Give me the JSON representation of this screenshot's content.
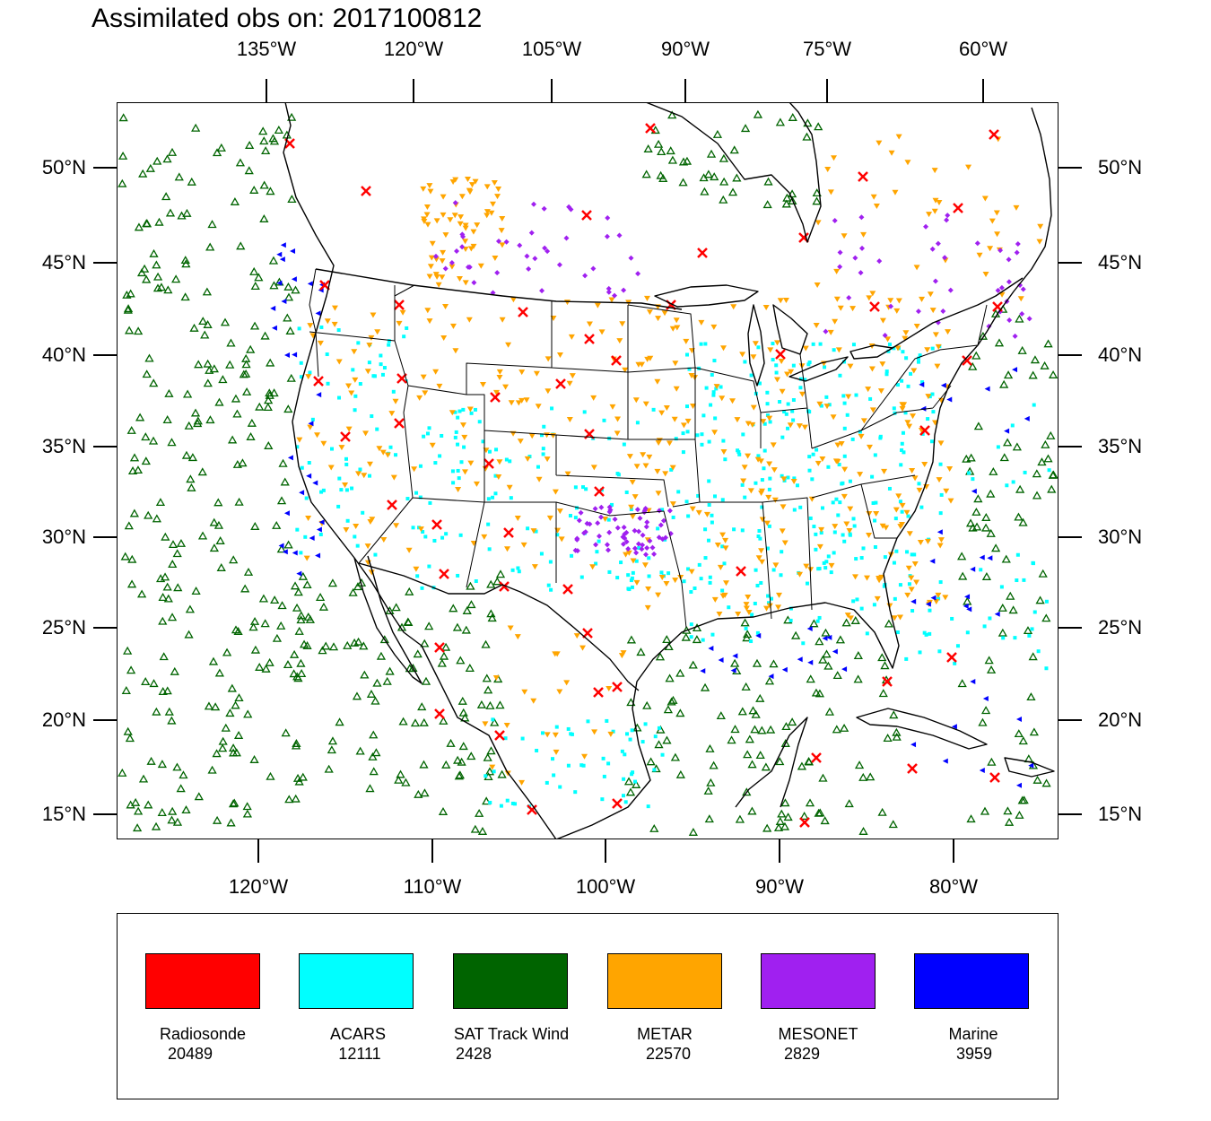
{
  "title": "Assimilated obs on: 2017100812",
  "top_axis": {
    "labels": [
      "135°W",
      "120°W",
      "105°W",
      "90°W",
      "75°W",
      "60°W"
    ]
  },
  "bottom_axis": {
    "labels": [
      "120°W",
      "110°W",
      "100°W",
      "90°W",
      "80°W"
    ]
  },
  "lat_axis": {
    "labels": [
      "50°N",
      "45°N",
      "40°N",
      "35°N",
      "30°N",
      "25°N",
      "20°N",
      "15°N"
    ]
  },
  "legend": [
    {
      "name": "Radiosonde",
      "count": "20489",
      "color": "#ff0000",
      "marker": "x-icon"
    },
    {
      "name": "ACARS",
      "count": "12111",
      "color": "#00ffff",
      "marker": "square-icon"
    },
    {
      "name": "SAT Track Wind",
      "count": "2428",
      "color": "#006400",
      "marker": "triangle-up-icon"
    },
    {
      "name": "METAR",
      "count": "22570",
      "color": "#ffa500",
      "marker": "triangle-down-icon"
    },
    {
      "name": "MESONET",
      "count": "2829",
      "color": "#a020f0",
      "marker": "diamond-icon"
    },
    {
      "name": "Marine",
      "count": "3959",
      "color": "#0000ff",
      "marker": "triangle-left-icon"
    }
  ],
  "colors": {
    "map_line": "#000000"
  }
}
